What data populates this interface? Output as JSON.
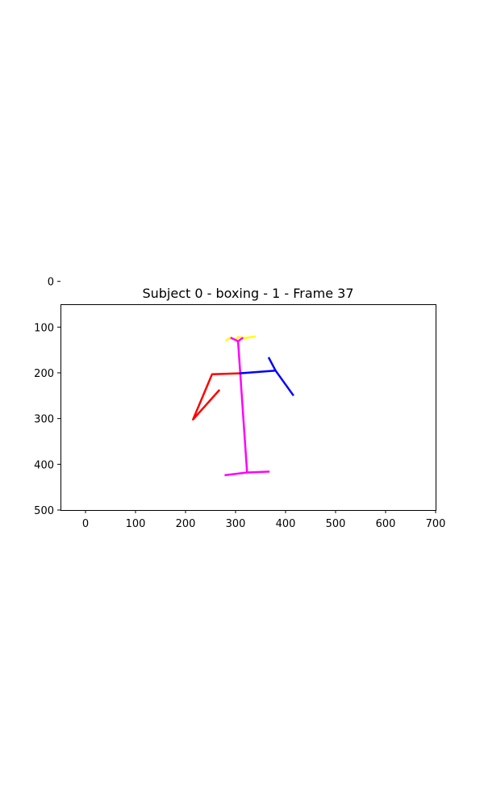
{
  "chart_data": {
    "type": "line",
    "title": "Subject 0 - boxing - 1 - Frame 37",
    "xlabel": "",
    "ylabel": "",
    "xlim": [
      -50,
      700
    ],
    "ylim": [
      500,
      50
    ],
    "y_axis_inverted": true,
    "x_ticks": [
      0,
      100,
      200,
      300,
      400,
      500,
      600,
      700
    ],
    "y_ticks": [
      0,
      100,
      200,
      300,
      400,
      500
    ],
    "grid": false,
    "legend": "none",
    "series": [
      {
        "color": "#ffff00",
        "points": [
          [
            280,
            130
          ],
          [
            290,
            123
          ],
          [
            300,
            128
          ],
          [
            305,
            122
          ],
          [
            320,
            124
          ],
          [
            340,
            120
          ]
        ]
      },
      {
        "color": "#ff00ff",
        "points": [
          [
            290,
            123
          ],
          [
            305,
            131
          ],
          [
            315,
            123
          ]
        ]
      },
      {
        "color": "#ff00ff",
        "points": [
          [
            305,
            131
          ],
          [
            323,
            418
          ]
        ]
      },
      {
        "color": "#ff00ff",
        "points": [
          [
            278,
            424
          ],
          [
            323,
            418
          ],
          [
            368,
            416
          ]
        ]
      },
      {
        "color": "#0000ff",
        "points": [
          [
            308,
            201
          ],
          [
            380,
            195
          ]
        ]
      },
      {
        "color": "#0000ff",
        "points": [
          [
            366,
            166
          ],
          [
            380,
            195
          ],
          [
            416,
            250
          ]
        ]
      },
      {
        "color": "#ff0000",
        "points": [
          [
            308,
            201
          ],
          [
            253,
            203
          ],
          [
            215,
            302
          ],
          [
            268,
            237
          ]
        ]
      }
    ]
  }
}
